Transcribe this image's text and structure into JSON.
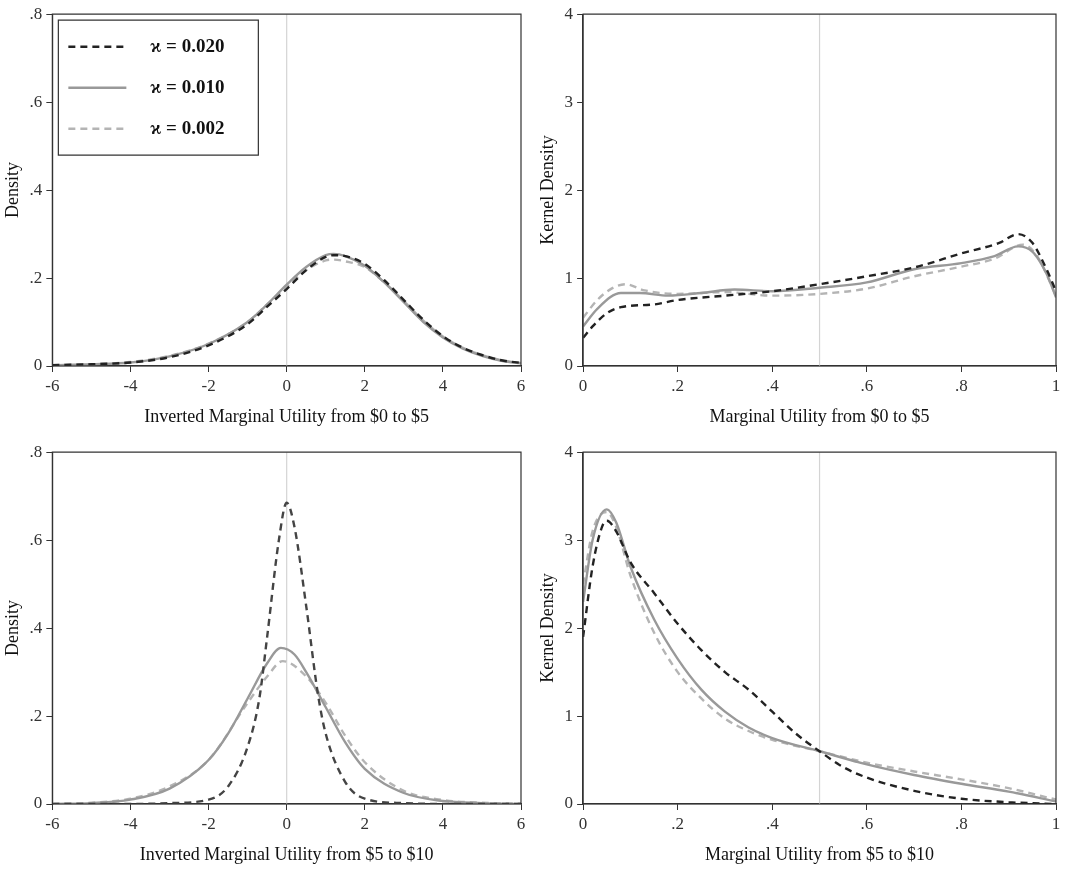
{
  "chart_data": [
    {
      "type": "line",
      "xlabel": "Inverted Marginal Utility from $0 to $5",
      "ylabel": "Density",
      "xlim": [
        -6,
        6
      ],
      "xticks": [
        -6,
        -4,
        -2,
        0,
        2,
        4,
        6
      ],
      "ylim": [
        0,
        0.8
      ],
      "yticks": [
        0,
        {
          "value": 0.2,
          "label": ".2"
        },
        {
          "value": 0.4,
          "label": ".4"
        },
        {
          "value": 0.6,
          "label": ".6"
        },
        {
          "value": 0.8,
          "label": ".8"
        }
      ],
      "legend": "top left",
      "ref_lines": [
        {
          "axis": "x",
          "value": 0,
          "color": "#d4d4d4"
        }
      ],
      "series": [
        {
          "name": "ϰ = 0.020",
          "color": "#222222",
          "line_style": "dashed",
          "x": [
            -6,
            -5,
            -4,
            -3,
            -2,
            -1,
            -0.5,
            0,
            0.5,
            1,
            1.2,
            1.5,
            2,
            2.5,
            3,
            3.5,
            4,
            4.5,
            5,
            5.5,
            6
          ],
          "values": [
            0.002,
            0.004,
            0.008,
            0.02,
            0.047,
            0.095,
            0.135,
            0.175,
            0.218,
            0.248,
            0.252,
            0.25,
            0.232,
            0.195,
            0.15,
            0.105,
            0.068,
            0.042,
            0.025,
            0.013,
            0.007
          ]
        },
        {
          "name": "ϰ = 0.010",
          "color": "#999999",
          "line_style": "solid",
          "x": [
            -6,
            -5,
            -4,
            -3,
            -2,
            -1,
            -0.5,
            0,
            0.5,
            1,
            1.2,
            1.5,
            2,
            2.5,
            3,
            3.5,
            4,
            4.5,
            5,
            5.5,
            6
          ],
          "values": [
            0.002,
            0.004,
            0.008,
            0.022,
            0.05,
            0.1,
            0.14,
            0.185,
            0.225,
            0.252,
            0.255,
            0.25,
            0.228,
            0.19,
            0.145,
            0.1,
            0.065,
            0.04,
            0.023,
            0.012,
            0.006
          ]
        },
        {
          "name": "ϰ = 0.002",
          "color": "#b4b4b4",
          "line_style": "dashed",
          "x": [
            -6,
            -5,
            -4,
            -3,
            -2,
            -1,
            -0.5,
            0,
            0.5,
            1,
            1.2,
            1.5,
            2,
            2.5,
            3,
            3.5,
            4,
            4.5,
            5,
            5.5,
            6
          ],
          "values": [
            0.002,
            0.004,
            0.009,
            0.023,
            0.051,
            0.1,
            0.14,
            0.18,
            0.218,
            0.24,
            0.242,
            0.238,
            0.225,
            0.19,
            0.148,
            0.103,
            0.067,
            0.042,
            0.025,
            0.013,
            0.007
          ]
        }
      ]
    },
    {
      "type": "line",
      "xlabel": "Marginal Utility from $0 to $5",
      "ylabel": "Kernel Density",
      "xlim": [
        0,
        1
      ],
      "xticks": [
        0,
        {
          "value": 0.2,
          "label": ".2"
        },
        {
          "value": 0.4,
          "label": ".4"
        },
        {
          "value": 0.6,
          "label": ".6"
        },
        {
          "value": 0.8,
          "label": ".8"
        },
        1
      ],
      "ylim": [
        0,
        4
      ],
      "yticks": [
        0,
        1,
        2,
        3,
        4
      ],
      "ref_lines": [
        {
          "axis": "x",
          "value": 0.5,
          "color": "#d4d4d4"
        }
      ],
      "series": [
        {
          "color": "#222222",
          "line_style": "dashed",
          "x": [
            0,
            0.02,
            0.05,
            0.08,
            0.15,
            0.2,
            0.3,
            0.4,
            0.5,
            0.6,
            0.7,
            0.8,
            0.88,
            0.92,
            0.95,
            0.98,
            1
          ],
          "values": [
            0.32,
            0.45,
            0.6,
            0.67,
            0.7,
            0.75,
            0.8,
            0.85,
            0.93,
            1.02,
            1.12,
            1.28,
            1.4,
            1.5,
            1.4,
            1.1,
            0.85
          ]
        },
        {
          "color": "#999999",
          "line_style": "solid",
          "x": [
            0,
            0.03,
            0.08,
            0.12,
            0.18,
            0.25,
            0.32,
            0.4,
            0.5,
            0.6,
            0.7,
            0.8,
            0.87,
            0.92,
            0.95,
            0.98,
            1
          ],
          "values": [
            0.45,
            0.65,
            0.83,
            0.83,
            0.8,
            0.83,
            0.87,
            0.85,
            0.89,
            0.95,
            1.1,
            1.17,
            1.25,
            1.36,
            1.3,
            1.05,
            0.78
          ]
        },
        {
          "color": "#b4b4b4",
          "line_style": "dashed",
          "x": [
            0,
            0.03,
            0.06,
            0.09,
            0.13,
            0.2,
            0.3,
            0.4,
            0.5,
            0.6,
            0.7,
            0.8,
            0.87,
            0.93,
            0.96,
            1
          ],
          "values": [
            0.55,
            0.75,
            0.88,
            0.93,
            0.86,
            0.82,
            0.84,
            0.8,
            0.82,
            0.88,
            1.02,
            1.13,
            1.22,
            1.38,
            1.25,
            0.8
          ]
        }
      ]
    },
    {
      "type": "line",
      "xlabel": "Inverted Marginal Utility from $5 to $10",
      "ylabel": "Density",
      "xlim": [
        -6,
        6
      ],
      "xticks": [
        -6,
        -4,
        -2,
        0,
        2,
        4,
        6
      ],
      "ylim": [
        0,
        0.8
      ],
      "yticks": [
        0,
        {
          "value": 0.2,
          "label": ".2"
        },
        {
          "value": 0.4,
          "label": ".4"
        },
        {
          "value": 0.6,
          "label": ".6"
        },
        {
          "value": 0.8,
          "label": ".8"
        }
      ],
      "ref_lines": [
        {
          "axis": "x",
          "value": 0,
          "color": "#d4d4d4"
        }
      ],
      "series": [
        {
          "color": "#444444",
          "line_style": "dashed",
          "x": [
            -6,
            -4,
            -3,
            -2,
            -1.5,
            -1,
            -0.7,
            -0.5,
            -0.2,
            0,
            0.2,
            0.5,
            0.8,
            1,
            1.5,
            2,
            3,
            4,
            6
          ],
          "values": [
            0,
            0,
            0.002,
            0.01,
            0.04,
            0.13,
            0.24,
            0.38,
            0.6,
            0.685,
            0.63,
            0.45,
            0.25,
            0.16,
            0.05,
            0.012,
            0.002,
            0,
            0
          ]
        },
        {
          "color": "#999999",
          "line_style": "solid",
          "x": [
            -6,
            -5,
            -4,
            -3,
            -2,
            -1.5,
            -1,
            -0.5,
            -0.15,
            0.2,
            0.5,
            1,
            1.5,
            2,
            3,
            4,
            5,
            6
          ],
          "values": [
            0,
            0.002,
            0.01,
            0.035,
            0.1,
            0.16,
            0.24,
            0.32,
            0.355,
            0.34,
            0.3,
            0.22,
            0.14,
            0.08,
            0.025,
            0.007,
            0.002,
            0
          ]
        },
        {
          "color": "#b4b4b4",
          "line_style": "dashed",
          "x": [
            -6,
            -5,
            -4,
            -3,
            -2,
            -1,
            -0.5,
            -0.1,
            0.5,
            1,
            1.5,
            2,
            3,
            4,
            5,
            6
          ],
          "values": [
            0,
            0.003,
            0.012,
            0.04,
            0.1,
            0.23,
            0.29,
            0.325,
            0.29,
            0.23,
            0.155,
            0.095,
            0.03,
            0.009,
            0.003,
            0.001
          ]
        }
      ]
    },
    {
      "type": "line",
      "xlabel": "Marginal Utility from $5 to $10",
      "ylabel": "Kernel Density",
      "xlim": [
        0,
        1
      ],
      "xticks": [
        0,
        {
          "value": 0.2,
          "label": ".2"
        },
        {
          "value": 0.4,
          "label": ".4"
        },
        {
          "value": 0.6,
          "label": ".6"
        },
        {
          "value": 0.8,
          "label": ".8"
        },
        1
      ],
      "ylim": [
        0,
        4
      ],
      "yticks": [
        0,
        1,
        2,
        3,
        4
      ],
      "ref_lines": [
        {
          "axis": "x",
          "value": 0.5,
          "color": "#d4d4d4"
        }
      ],
      "series": [
        {
          "color": "#222222",
          "line_style": "dashed",
          "x": [
            0,
            0.02,
            0.04,
            0.05,
            0.07,
            0.1,
            0.15,
            0.2,
            0.25,
            0.3,
            0.35,
            0.4,
            0.45,
            0.5,
            0.55,
            0.6,
            0.7,
            0.8,
            0.9,
            1
          ],
          "values": [
            1.9,
            2.7,
            3.15,
            3.22,
            3.1,
            2.75,
            2.4,
            2.05,
            1.75,
            1.5,
            1.3,
            1.05,
            0.8,
            0.6,
            0.42,
            0.3,
            0.15,
            0.06,
            0.02,
            0
          ]
        },
        {
          "color": "#999999",
          "line_style": "solid",
          "x": [
            0,
            0.02,
            0.05,
            0.07,
            0.1,
            0.15,
            0.2,
            0.25,
            0.3,
            0.35,
            0.4,
            0.5,
            0.6,
            0.7,
            0.8,
            0.9,
            1
          ],
          "values": [
            2.3,
            3.0,
            3.35,
            3.2,
            2.7,
            2.1,
            1.65,
            1.3,
            1.05,
            0.87,
            0.75,
            0.6,
            0.45,
            0.33,
            0.23,
            0.14,
            0.03
          ]
        },
        {
          "color": "#b4b4b4",
          "line_style": "dashed",
          "x": [
            0,
            0.02,
            0.05,
            0.07,
            0.1,
            0.15,
            0.2,
            0.25,
            0.3,
            0.35,
            0.4,
            0.5,
            0.6,
            0.7,
            0.8,
            0.9,
            1
          ],
          "values": [
            2.5,
            3.1,
            3.32,
            3.15,
            2.6,
            1.95,
            1.5,
            1.2,
            0.97,
            0.83,
            0.73,
            0.6,
            0.47,
            0.37,
            0.28,
            0.18,
            0.05
          ]
        }
      ]
    }
  ]
}
